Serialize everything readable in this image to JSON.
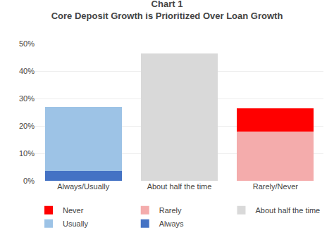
{
  "chart_data": {
    "type": "bar",
    "stacked": true,
    "title": "Chart 1",
    "subtitle": "Core Deposit Growth is Prioritized Over Loan Growth",
    "categories": [
      "Always/Usually",
      "About half the time",
      "Rarely/Never"
    ],
    "series": [
      {
        "name": "Always",
        "color": "#4472C4",
        "values": [
          3.5,
          0.0,
          0.0
        ]
      },
      {
        "name": "Usually",
        "color": "#9DC3E6",
        "values": [
          23.5,
          0.0,
          0.0
        ]
      },
      {
        "name": "About half the time",
        "color": "#D9D9D9",
        "values": [
          0.0,
          46.5,
          0.0
        ]
      },
      {
        "name": "Rarely",
        "color": "#F4ACAC",
        "values": [
          0.0,
          0.0,
          18.0
        ]
      },
      {
        "name": "Never",
        "color": "#FF0000",
        "values": [
          0.0,
          0.0,
          8.3
        ]
      }
    ],
    "ylim": [
      0,
      50
    ],
    "yticks": [
      {
        "value": 0,
        "label": "0%"
      },
      {
        "value": 10,
        "label": "10%"
      },
      {
        "value": 20,
        "label": "20%"
      },
      {
        "value": 30,
        "label": "30%"
      },
      {
        "value": 40,
        "label": "40%"
      },
      {
        "value": 50,
        "label": "50%"
      }
    ],
    "grid": true,
    "legend": "bottom"
  }
}
